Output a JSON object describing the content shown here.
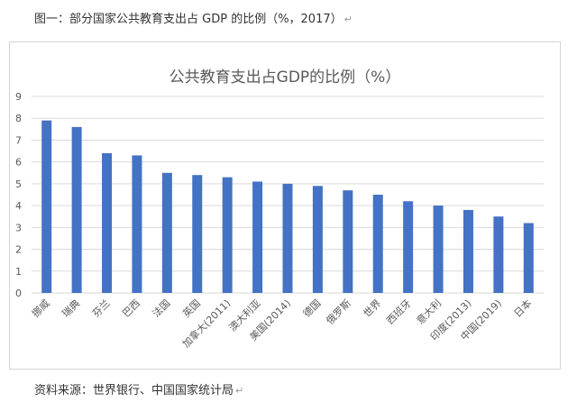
{
  "caption": {
    "text": "图一：部分国家公共教育支出占 GDP 的比例（%，2017）",
    "mark": "↵"
  },
  "source": {
    "text": "资料来源：世界银行、中国国家统计局",
    "mark": "↵"
  },
  "colors": {
    "bar": "#4472C4",
    "grid": "#d9d9d9",
    "axis_text": "#595959",
    "title": "#595959"
  },
  "chart_data": {
    "type": "bar",
    "title": "公共教育支出占GDP的比例（%）",
    "xlabel": "",
    "ylabel": "",
    "ylim": [
      0,
      9
    ],
    "yticks": [
      0,
      1,
      2,
      3,
      4,
      5,
      6,
      7,
      8,
      9
    ],
    "grid": true,
    "categories": [
      "挪威",
      "瑞典",
      "芬兰",
      "巴西",
      "法国",
      "英国",
      "加拿大(2011)",
      "澳大利亚",
      "美国(2014)",
      "德国",
      "俄罗斯",
      "世界",
      "西班牙",
      "意大利",
      "印度(2013)",
      "中国(2019)",
      "日本"
    ],
    "values": [
      7.9,
      7.6,
      6.4,
      6.3,
      5.5,
      5.4,
      5.3,
      5.1,
      5.0,
      4.9,
      4.7,
      4.5,
      4.2,
      4.0,
      3.8,
      3.5,
      3.2
    ]
  }
}
